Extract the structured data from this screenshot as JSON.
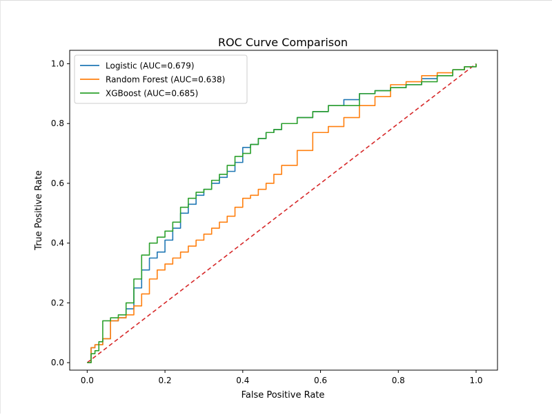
{
  "chart_data": {
    "type": "line",
    "title": "ROC Curve Comparison",
    "xlabel": "False Positive Rate",
    "ylabel": "True Positive Rate",
    "xlim": [
      -0.045,
      1.055
    ],
    "ylim": [
      -0.025,
      1.045
    ],
    "xticks": [
      "0.0",
      "0.2",
      "0.4",
      "0.6",
      "0.8",
      "1.0"
    ],
    "yticks": [
      "0.0",
      "0.2",
      "0.4",
      "0.6",
      "0.8",
      "1.0"
    ],
    "grid": false,
    "legend_position": "upper-left",
    "series": [
      {
        "name": "Logistic (AUC=0.679)",
        "color": "#1f77b4",
        "x": [
          0.0,
          0.01,
          0.02,
          0.04,
          0.06,
          0.08,
          0.1,
          0.12,
          0.14,
          0.16,
          0.18,
          0.2,
          0.22,
          0.24,
          0.26,
          0.28,
          0.3,
          0.32,
          0.34,
          0.36,
          0.38,
          0.4,
          0.42,
          0.44,
          0.46,
          0.48,
          0.5,
          0.54,
          0.58,
          0.62,
          0.66,
          0.7,
          0.74,
          0.78,
          0.82,
          0.86,
          0.9,
          0.94,
          0.97,
          1.0
        ],
        "y": [
          0.0,
          0.05,
          0.06,
          0.08,
          0.14,
          0.15,
          0.18,
          0.25,
          0.31,
          0.35,
          0.37,
          0.41,
          0.45,
          0.5,
          0.53,
          0.56,
          0.58,
          0.6,
          0.62,
          0.64,
          0.67,
          0.72,
          0.73,
          0.75,
          0.77,
          0.78,
          0.8,
          0.82,
          0.84,
          0.86,
          0.88,
          0.9,
          0.91,
          0.92,
          0.93,
          0.95,
          0.96,
          0.98,
          0.99,
          1.0
        ]
      },
      {
        "name": "Random Forest (AUC=0.638)",
        "color": "#ff7f0e",
        "x": [
          0.0,
          0.01,
          0.02,
          0.04,
          0.06,
          0.08,
          0.1,
          0.12,
          0.14,
          0.16,
          0.18,
          0.2,
          0.22,
          0.24,
          0.26,
          0.28,
          0.3,
          0.32,
          0.34,
          0.36,
          0.38,
          0.4,
          0.42,
          0.44,
          0.46,
          0.48,
          0.5,
          0.54,
          0.58,
          0.62,
          0.66,
          0.7,
          0.74,
          0.78,
          0.82,
          0.86,
          0.9,
          0.94,
          0.97,
          1.0
        ],
        "y": [
          0.0,
          0.05,
          0.06,
          0.08,
          0.14,
          0.15,
          0.16,
          0.19,
          0.23,
          0.28,
          0.31,
          0.33,
          0.35,
          0.37,
          0.39,
          0.41,
          0.43,
          0.45,
          0.47,
          0.49,
          0.52,
          0.55,
          0.56,
          0.58,
          0.6,
          0.63,
          0.66,
          0.71,
          0.77,
          0.79,
          0.82,
          0.86,
          0.89,
          0.93,
          0.94,
          0.96,
          0.97,
          0.98,
          0.99,
          1.0
        ]
      },
      {
        "name": "XGBoost (AUC=0.685)",
        "color": "#2ca02c",
        "x": [
          0.0,
          0.01,
          0.02,
          0.03,
          0.04,
          0.06,
          0.08,
          0.1,
          0.12,
          0.14,
          0.16,
          0.18,
          0.2,
          0.22,
          0.24,
          0.26,
          0.28,
          0.3,
          0.32,
          0.34,
          0.36,
          0.38,
          0.4,
          0.42,
          0.44,
          0.46,
          0.48,
          0.5,
          0.54,
          0.58,
          0.62,
          0.66,
          0.7,
          0.74,
          0.78,
          0.82,
          0.86,
          0.9,
          0.94,
          0.97,
          1.0
        ],
        "y": [
          0.0,
          0.03,
          0.04,
          0.07,
          0.14,
          0.15,
          0.16,
          0.2,
          0.28,
          0.36,
          0.4,
          0.42,
          0.44,
          0.47,
          0.52,
          0.55,
          0.57,
          0.58,
          0.61,
          0.63,
          0.66,
          0.69,
          0.7,
          0.73,
          0.75,
          0.77,
          0.78,
          0.8,
          0.82,
          0.84,
          0.86,
          0.86,
          0.9,
          0.91,
          0.92,
          0.93,
          0.94,
          0.96,
          0.98,
          0.99,
          1.0
        ]
      }
    ],
    "reference_line": {
      "x": [
        0,
        1
      ],
      "y": [
        0,
        1
      ],
      "color": "#d62728",
      "style": "dashed"
    }
  }
}
